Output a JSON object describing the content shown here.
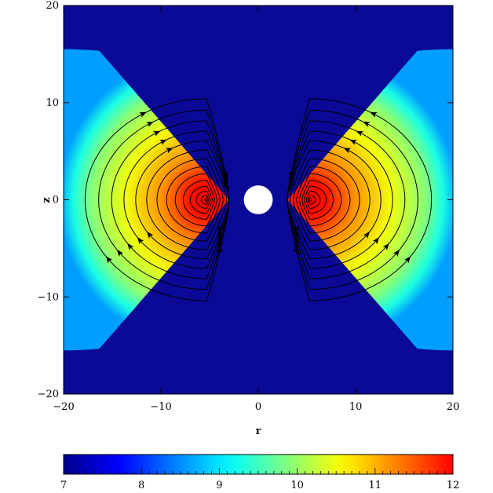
{
  "chart_data": [
    {
      "type": "heatmap",
      "title": "",
      "xlabel": "r",
      "ylabel": "z",
      "xlim": [
        -20,
        20
      ],
      "ylim": [
        -20,
        20
      ],
      "xticks": [
        -20,
        -10,
        0,
        10,
        20
      ],
      "yticks": [
        -20,
        -10,
        0,
        10,
        20
      ],
      "xtick_labels": [
        "−20",
        "−10",
        "0",
        "10",
        "20"
      ],
      "ytick_labels": [
        "−20",
        "−10",
        "0",
        "10",
        "20"
      ],
      "grid": false,
      "background_color": "#0a0a96",
      "central_object": {
        "shape": "circle",
        "center": [
          0,
          0
        ],
        "radius": 1.0,
        "color": "#ffffff"
      },
      "torus": {
        "description_units": "r,z",
        "inner_edge_r": 3.0,
        "outer_edge_r": 20.0,
        "half_height_at_outer_edge": 15.5,
        "peak_center_r": 5.3,
        "peak_value": 12.0,
        "edge_value": 9.0
      },
      "field_lines": {
        "center_r": 5.3,
        "loop_count": 14,
        "outermost_loop": {
          "r_min": 0.2,
          "r_max": 17.8,
          "z_extent": 10.4
        }
      },
      "colorscale": [
        "#00008c",
        "#0000ff",
        "#0080ff",
        "#00ffff",
        "#80ff80",
        "#ffff00",
        "#ff8000",
        "#ff0000"
      ]
    },
    {
      "type": "colorbar",
      "range": [
        7,
        12
      ],
      "ticks": [
        7,
        8,
        9,
        10,
        11,
        12
      ],
      "tick_labels": [
        "7",
        "8",
        "9",
        "10",
        "11",
        "12"
      ]
    }
  ]
}
